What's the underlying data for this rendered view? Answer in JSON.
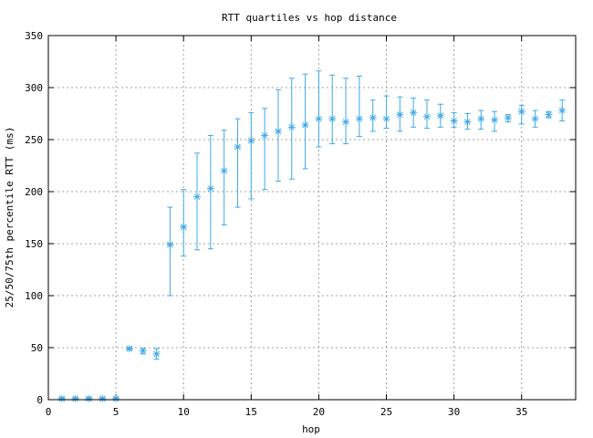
{
  "chart_data": {
    "type": "scatter",
    "title": "RTT quartiles vs hop distance",
    "xlabel": "hop",
    "ylabel": "25/50/75th percentile RTT (ms)",
    "xlim": [
      0,
      39
    ],
    "ylim": [
      0,
      350
    ],
    "xticks": [
      0,
      5,
      10,
      15,
      20,
      25,
      30,
      35
    ],
    "yticks": [
      0,
      50,
      100,
      150,
      200,
      250,
      300,
      350
    ],
    "grid": true,
    "color": "#3fa9e6",
    "series": [
      {
        "name": "RTT quartiles",
        "x": [
          1,
          2,
          3,
          4,
          5,
          6,
          7,
          8,
          9,
          10,
          11,
          12,
          13,
          14,
          15,
          16,
          17,
          18,
          19,
          20,
          21,
          22,
          23,
          24,
          25,
          26,
          27,
          28,
          29,
          30,
          31,
          32,
          33,
          34,
          35,
          36,
          37,
          38
        ],
        "median": [
          1,
          1,
          1,
          1,
          1,
          49,
          47,
          44,
          149,
          166,
          195,
          203,
          220,
          243,
          249,
          254,
          258,
          262,
          264,
          270,
          270,
          267,
          270,
          271,
          270,
          274,
          276,
          272,
          273,
          268,
          267,
          270,
          269,
          271,
          277,
          270,
          274,
          278
        ],
        "p25": [
          0,
          0,
          0,
          0,
          0,
          48,
          44,
          39,
          100,
          138,
          144,
          145,
          168,
          185,
          193,
          202,
          210,
          212,
          222,
          243,
          246,
          246,
          253,
          258,
          261,
          258,
          262,
          261,
          262,
          262,
          260,
          260,
          258,
          267,
          265,
          262,
          271,
          268
        ],
        "p75": [
          2,
          2,
          2,
          2,
          2,
          50,
          49,
          49,
          185,
          202,
          237,
          254,
          259,
          270,
          276,
          280,
          298,
          309,
          313,
          316,
          312,
          309,
          311,
          288,
          292,
          291,
          290,
          288,
          284,
          276,
          275,
          278,
          277,
          274,
          283,
          278,
          277,
          288
        ]
      }
    ]
  }
}
